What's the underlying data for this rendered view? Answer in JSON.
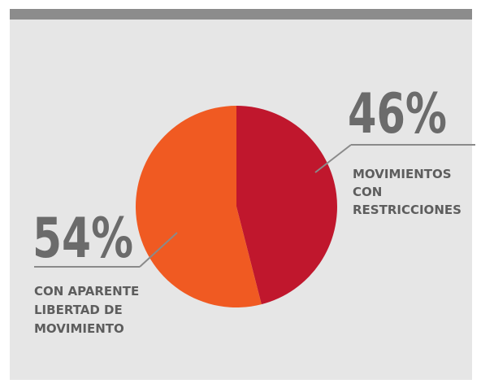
{
  "colors": {
    "background": "#e6e6e6",
    "top_bar": "#8c8c8c",
    "restricted": "#c0172d",
    "free": "#f05a22",
    "text": "#666666"
  },
  "chart_data": {
    "type": "pie",
    "title": "",
    "slices": [
      {
        "percent": 46,
        "value_label": "46%",
        "label_lines": [
          "MOVIMIENTOS",
          "CON",
          "RESTRICCIONES"
        ],
        "color": "#c0172d"
      },
      {
        "percent": 54,
        "value_label": "54%",
        "label_lines": [
          "CON APARENTE",
          "LIBERTAD DE",
          "MOVIMIENTO"
        ],
        "color": "#f05a22"
      }
    ],
    "legend": "none"
  }
}
